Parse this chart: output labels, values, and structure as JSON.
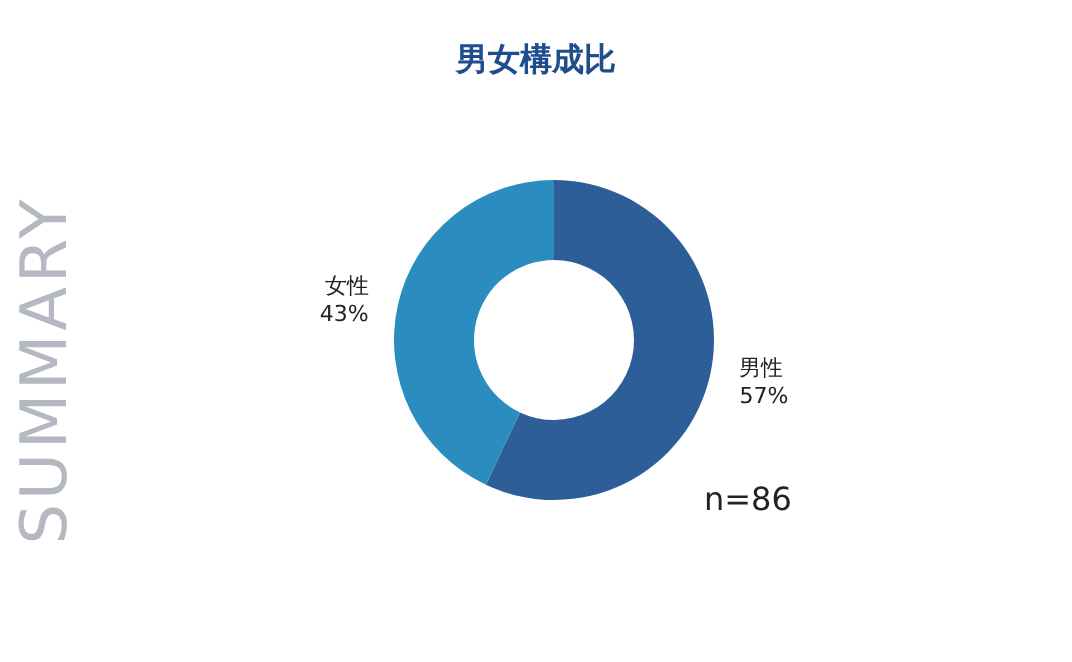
{
  "chart_data": {
    "type": "donut",
    "title": "男女構成比",
    "categories": [
      "男性",
      "女性"
    ],
    "values": [
      57,
      43
    ],
    "value_labels": [
      "57%",
      "43%"
    ],
    "colors": [
      "#2e5e98",
      "#2b8dbf"
    ],
    "annotations": [
      "n=86",
      "SUMMARY"
    ]
  }
}
